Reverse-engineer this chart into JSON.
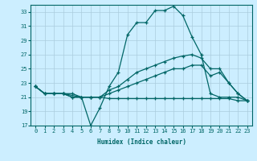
{
  "xlabel": "Humidex (Indice chaleur)",
  "bg_color": "#cceeff",
  "grid_color": "#aaccdd",
  "line_color": "#006666",
  "xlim": [
    -0.5,
    23.5
  ],
  "ylim": [
    17,
    34
  ],
  "yticks": [
    17,
    19,
    21,
    23,
    25,
    27,
    29,
    31,
    33
  ],
  "xticks": [
    0,
    1,
    2,
    3,
    4,
    5,
    6,
    7,
    8,
    9,
    10,
    11,
    12,
    13,
    14,
    15,
    16,
    17,
    18,
    19,
    20,
    21,
    22,
    23
  ],
  "curve1_x": [
    0,
    1,
    2,
    3,
    4,
    5,
    6,
    7,
    8,
    9,
    10,
    11,
    12,
    13,
    14,
    15,
    16,
    17,
    18,
    19,
    20,
    21,
    22,
    23
  ],
  "curve1_y": [
    22.5,
    21.5,
    21.5,
    21.5,
    21.0,
    21.0,
    17.0,
    19.5,
    22.5,
    24.5,
    29.8,
    31.5,
    31.5,
    33.2,
    33.2,
    33.8,
    32.5,
    29.5,
    27.0,
    21.5,
    21.0,
    21.0,
    21.0,
    20.5
  ],
  "curve2_x": [
    0,
    1,
    2,
    3,
    5,
    6,
    7,
    8,
    9,
    10,
    11,
    12,
    13,
    14,
    15,
    16,
    17,
    18,
    19,
    20,
    21,
    22,
    23
  ],
  "curve2_y": [
    22.5,
    21.5,
    21.5,
    21.5,
    21.0,
    21.0,
    21.0,
    22.0,
    22.5,
    23.5,
    24.5,
    25.0,
    25.5,
    26.0,
    26.5,
    26.8,
    27.0,
    26.5,
    25.0,
    25.0,
    23.0,
    21.5,
    20.5
  ],
  "curve3_x": [
    0,
    1,
    2,
    3,
    4,
    5,
    6,
    7,
    8,
    9,
    10,
    11,
    12,
    13,
    14,
    15,
    16,
    17,
    18,
    19,
    20,
    21,
    22,
    23
  ],
  "curve3_y": [
    22.5,
    21.5,
    21.5,
    21.5,
    21.5,
    21.0,
    21.0,
    21.0,
    21.5,
    22.0,
    22.5,
    23.0,
    23.5,
    24.0,
    24.5,
    25.0,
    25.0,
    25.5,
    25.5,
    24.0,
    24.5,
    23.0,
    21.5,
    20.5
  ],
  "curve4_x": [
    0,
    1,
    2,
    3,
    4,
    5,
    6,
    7,
    8,
    9,
    10,
    11,
    12,
    13,
    14,
    15,
    16,
    17,
    18,
    19,
    20,
    21,
    22,
    23
  ],
  "curve4_y": [
    22.5,
    21.5,
    21.5,
    21.5,
    21.0,
    21.0,
    21.0,
    21.0,
    20.8,
    20.8,
    20.8,
    20.8,
    20.8,
    20.8,
    20.8,
    20.8,
    20.8,
    20.8,
    20.8,
    20.8,
    20.8,
    20.8,
    20.5,
    20.5
  ]
}
